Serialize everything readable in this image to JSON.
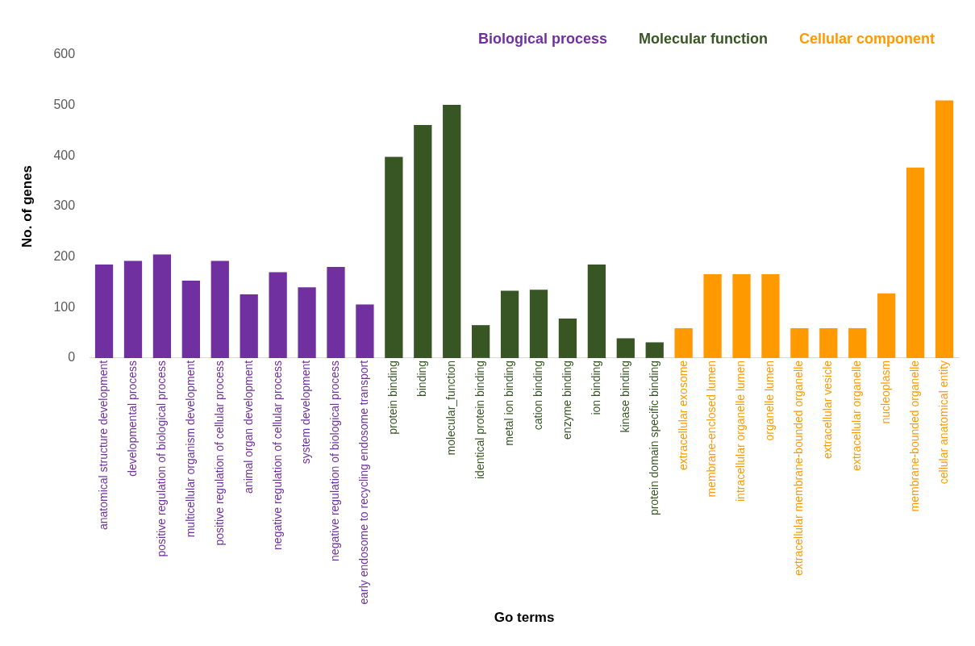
{
  "chart_data": {
    "type": "bar",
    "xlabel": "Go terms",
    "ylabel": "No. of genes",
    "categories": [
      "anatomical structure development",
      "developmental process",
      "positive regulation of biological process",
      "multicellular organism development",
      "positive regulation of cellular process",
      "animal organ development",
      "negative regulation of cellular process",
      "system development",
      "negative regulation of biological process",
      "early endosome to recycling endosome transport",
      "protein binding",
      "binding",
      "molecular_function",
      "identical protein binding",
      "metal ion binding",
      "cation binding",
      "enzyme binding",
      "ion binding",
      "kinase binding",
      "protein domain specific binding",
      "extracellular exosome",
      "membrane-enclosed lumen",
      "intracellular organelle lumen",
      "organelle lumen",
      "extracellular membrane-bounded organelle",
      "extracellular vesicle",
      "extracellular organelle",
      "nucleoplasm",
      "membrane-bounded organelle",
      "cellular anatomical entity"
    ],
    "series": [
      {
        "name": "Biological process",
        "color": "#7030a0",
        "values": [
          185,
          192,
          205,
          153,
          192,
          126,
          170,
          140,
          180,
          106,
          null,
          null,
          null,
          null,
          null,
          null,
          null,
          null,
          null,
          null,
          null,
          null,
          null,
          null,
          null,
          null,
          null,
          null,
          null,
          null
        ]
      },
      {
        "name": "Molecular function",
        "color": "#375623",
        "values": [
          null,
          null,
          null,
          null,
          null,
          null,
          null,
          null,
          null,
          null,
          398,
          461,
          501,
          65,
          133,
          135,
          78,
          185,
          39,
          31,
          null,
          null,
          null,
          null,
          null,
          null,
          null,
          null,
          null,
          null
        ]
      },
      {
        "name": "Cellular component",
        "color": "#ff9900",
        "values": [
          null,
          null,
          null,
          null,
          null,
          null,
          null,
          null,
          null,
          null,
          null,
          null,
          null,
          null,
          null,
          null,
          null,
          null,
          null,
          null,
          59,
          166,
          166,
          166,
          59,
          59,
          59,
          128,
          377,
          510
        ]
      }
    ],
    "stacked": true,
    "ylim": [
      0,
      600
    ],
    "yticks": [
      0,
      100,
      200,
      300,
      400,
      500,
      600
    ],
    "grid": false,
    "legend": "top right"
  }
}
